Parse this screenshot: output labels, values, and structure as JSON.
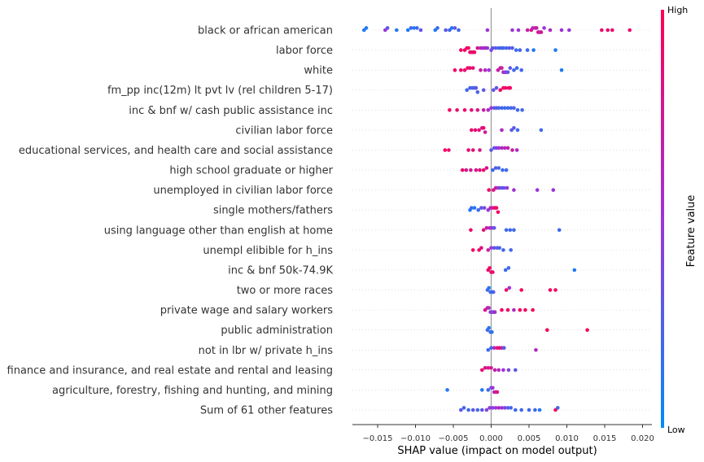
{
  "chart_data": {
    "type": "scatter",
    "subtype": "shap-beeswarm",
    "xlabel": "SHAP value (impact on model output)",
    "xlim": [
      -0.0185,
      0.0205
    ],
    "xticks": [
      {
        "value": -0.015,
        "label": "−0.015"
      },
      {
        "value": -0.01,
        "label": "−0.010"
      },
      {
        "value": -0.005,
        "label": "−0.005"
      },
      {
        "value": 0.0,
        "label": "0.000"
      },
      {
        "value": 0.005,
        "label": "0.005"
      },
      {
        "value": 0.01,
        "label": "0.010"
      },
      {
        "value": 0.015,
        "label": "0.015"
      },
      {
        "value": 0.02,
        "label": "0.020"
      }
    ],
    "colorbar": {
      "high_label": "High",
      "low_label": "Low",
      "title": "Feature value",
      "low_color": "#008bfb",
      "high_color": "#ff0052"
    },
    "features": [
      {
        "name": "black or african american",
        "points": [
          [
            -0.0168,
            0.1
          ],
          [
            -0.0165,
            0.1
          ],
          [
            -0.014,
            0.5
          ],
          [
            -0.0137,
            0.3
          ],
          [
            -0.0125,
            0.1
          ],
          [
            -0.011,
            0.1
          ],
          [
            -0.0106,
            0.2
          ],
          [
            -0.0102,
            0.1
          ],
          [
            -0.0098,
            0.2
          ],
          [
            -0.0093,
            0.3
          ],
          [
            -0.0074,
            0.1
          ],
          [
            -0.0071,
            0.2
          ],
          [
            -0.006,
            0.3
          ],
          [
            -0.0055,
            0.2
          ],
          [
            -0.0052,
            0.1
          ],
          [
            -0.0048,
            0.3
          ],
          [
            -0.0043,
            0.2
          ],
          [
            -0.0005,
            0.5
          ],
          [
            0.0028,
            0.5
          ],
          [
            0.0036,
            0.5
          ],
          [
            0.0048,
            0.7
          ],
          [
            0.0053,
            0.8
          ],
          [
            0.0055,
            0.6
          ],
          [
            0.0058,
            0.7
          ],
          [
            0.006,
            0.7
          ],
          [
            0.0062,
            0.8
          ],
          [
            0.0064,
            0.6
          ],
          [
            0.0066,
            0.8
          ],
          [
            0.007,
            0.5
          ],
          [
            0.0078,
            0.6
          ],
          [
            0.0093,
            0.5
          ],
          [
            0.0103,
            0.5
          ],
          [
            0.0146,
            0.9
          ],
          [
            0.0154,
            0.9
          ],
          [
            0.016,
            0.9
          ],
          [
            0.0183,
            0.9
          ]
        ]
      },
      {
        "name": "labor force",
        "points": [
          [
            -0.004,
            0.9
          ],
          [
            -0.0035,
            0.95
          ],
          [
            -0.0032,
            0.9
          ],
          [
            -0.003,
            0.95
          ],
          [
            -0.0028,
            0.9
          ],
          [
            -0.0026,
            0.85
          ],
          [
            -0.0024,
            0.95
          ],
          [
            -0.0022,
            0.9
          ],
          [
            -0.0018,
            0.8
          ],
          [
            -0.0014,
            0.6
          ],
          [
            -0.0011,
            0.5
          ],
          [
            -0.0008,
            0.7
          ],
          [
            -0.0005,
            0.4
          ],
          [
            0.0,
            0.4
          ],
          [
            0.0002,
            0.3
          ],
          [
            0.0006,
            0.3
          ],
          [
            0.001,
            0.2
          ],
          [
            0.0013,
            0.2
          ],
          [
            0.0016,
            0.25
          ],
          [
            0.002,
            0.2
          ],
          [
            0.0024,
            0.3
          ],
          [
            0.0028,
            0.25
          ],
          [
            0.0033,
            0.2
          ],
          [
            0.0038,
            0.2
          ],
          [
            0.0048,
            0.2
          ],
          [
            0.0056,
            0.1
          ],
          [
            0.0085,
            0.1
          ]
        ]
      },
      {
        "name": "white",
        "points": [
          [
            -0.0048,
            0.95
          ],
          [
            -0.004,
            0.9
          ],
          [
            -0.0035,
            0.9
          ],
          [
            -0.0031,
            0.95
          ],
          [
            -0.0028,
            0.9
          ],
          [
            -0.0024,
            0.85
          ],
          [
            -0.0014,
            0.7
          ],
          [
            -0.0008,
            0.6
          ],
          [
            -0.0003,
            0.5
          ],
          [
            0.0009,
            0.7
          ],
          [
            0.0012,
            0.75
          ],
          [
            0.0014,
            0.7
          ],
          [
            0.0016,
            0.6
          ],
          [
            0.0018,
            0.5
          ],
          [
            0.002,
            0.4
          ],
          [
            0.0022,
            0.3
          ],
          [
            0.0025,
            0.3
          ],
          [
            0.003,
            0.2
          ],
          [
            0.0034,
            0.2
          ],
          [
            0.004,
            0.2
          ],
          [
            0.0093,
            0.1
          ]
        ]
      },
      {
        "name": "fm_pp inc(12m) lt pvt lv (rel children 5-17)",
        "points": [
          [
            -0.0032,
            0.2
          ],
          [
            -0.0028,
            0.2
          ],
          [
            -0.0025,
            0.3
          ],
          [
            -0.0022,
            0.2
          ],
          [
            -0.002,
            0.3
          ],
          [
            -0.0018,
            0.25
          ],
          [
            -0.001,
            0.3
          ],
          [
            0.0003,
            0.3
          ],
          [
            0.0007,
            0.3
          ],
          [
            0.0012,
            0.95
          ],
          [
            0.0016,
            0.9
          ],
          [
            0.0019,
            0.95
          ],
          [
            0.0023,
            0.9
          ],
          [
            0.0025,
            0.95
          ]
        ]
      },
      {
        "name": "inc & bnf w/ cash public assistance inc",
        "points": [
          [
            -0.0055,
            0.95
          ],
          [
            -0.0045,
            0.9
          ],
          [
            -0.0035,
            0.9
          ],
          [
            -0.0026,
            0.85
          ],
          [
            -0.0018,
            0.8
          ],
          [
            -0.001,
            0.7
          ],
          [
            -0.0004,
            0.6
          ],
          [
            0.0,
            0.5
          ],
          [
            0.0004,
            0.3
          ],
          [
            0.0007,
            0.3
          ],
          [
            0.001,
            0.2
          ],
          [
            0.0014,
            0.2
          ],
          [
            0.0018,
            0.2
          ],
          [
            0.0022,
            0.2
          ],
          [
            0.0026,
            0.2
          ],
          [
            0.003,
            0.25
          ],
          [
            0.0035,
            0.2
          ],
          [
            0.0041,
            0.2
          ]
        ]
      },
      {
        "name": "civilian labor force",
        "points": [
          [
            -0.0026,
            0.9
          ],
          [
            -0.0021,
            0.9
          ],
          [
            -0.0016,
            0.85
          ],
          [
            -0.0012,
            0.8
          ],
          [
            -0.001,
            0.9
          ],
          [
            -0.0008,
            0.75
          ],
          [
            0.0014,
            0.6
          ],
          [
            0.0027,
            0.3
          ],
          [
            0.003,
            0.3
          ],
          [
            0.0035,
            0.2
          ],
          [
            0.0066,
            0.2
          ]
        ]
      },
      {
        "name": "educational services, and health care and social assistance",
        "points": [
          [
            -0.0061,
            0.95
          ],
          [
            -0.0056,
            0.9
          ],
          [
            -0.003,
            0.9
          ],
          [
            -0.0024,
            0.85
          ],
          [
            -0.0015,
            0.8
          ],
          [
            0.0,
            0.3
          ],
          [
            0.0004,
            0.3
          ],
          [
            0.0007,
            0.4
          ],
          [
            0.001,
            0.5
          ],
          [
            0.0014,
            0.6
          ],
          [
            0.0018,
            0.6
          ],
          [
            0.0022,
            0.7
          ],
          [
            0.0028,
            0.7
          ],
          [
            0.0034,
            0.6
          ]
        ]
      },
      {
        "name": "high school graduate or higher",
        "points": [
          [
            -0.0038,
            0.9
          ],
          [
            -0.0033,
            0.8
          ],
          [
            -0.0027,
            0.75
          ],
          [
            -0.002,
            0.8
          ],
          [
            -0.0015,
            0.85
          ],
          [
            -0.001,
            0.9
          ],
          [
            -0.0006,
            0.8
          ],
          [
            0.0002,
            0.2
          ],
          [
            0.0006,
            0.3
          ],
          [
            0.001,
            0.2
          ],
          [
            0.0015,
            0.2
          ],
          [
            0.002,
            0.2
          ]
        ]
      },
      {
        "name": "unemployed  in civilian labor force",
        "points": [
          [
            -0.0003,
            0.9
          ],
          [
            0.0003,
            0.8
          ],
          [
            0.0006,
            0.7
          ],
          [
            0.0009,
            0.6
          ],
          [
            0.0011,
            0.4
          ],
          [
            0.0014,
            0.3
          ],
          [
            0.0017,
            0.3
          ],
          [
            0.0021,
            0.5
          ],
          [
            0.003,
            0.5
          ],
          [
            0.0061,
            0.5
          ],
          [
            0.0082,
            0.5
          ]
        ]
      },
      {
        "name": "single mothers/fathers",
        "points": [
          [
            -0.0028,
            0.1
          ],
          [
            -0.0026,
            0.2
          ],
          [
            -0.0022,
            0.1
          ],
          [
            -0.0017,
            0.2
          ],
          [
            -0.0013,
            0.3
          ],
          [
            -0.0009,
            0.4
          ],
          [
            -0.0004,
            0.5
          ],
          [
            -0.0001,
            0.6
          ],
          [
            0.0002,
            0.8
          ],
          [
            0.0005,
            0.9
          ],
          [
            0.0007,
            0.9
          ],
          [
            0.0009,
            0.95
          ]
        ]
      },
      {
        "name": "using language other than english at home",
        "points": [
          [
            -0.0027,
            0.9
          ],
          [
            -0.001,
            0.85
          ],
          [
            -0.0006,
            0.7
          ],
          [
            -0.0002,
            0.6
          ],
          [
            0.0001,
            0.5
          ],
          [
            0.0004,
            0.3
          ],
          [
            0.002,
            0.2
          ],
          [
            0.0025,
            0.2
          ],
          [
            0.003,
            0.2
          ],
          [
            0.009,
            0.2
          ]
        ]
      },
      {
        "name": "unempl elibible for h_ins",
        "points": [
          [
            -0.0024,
            0.95
          ],
          [
            -0.0016,
            0.9
          ],
          [
            -0.0013,
            0.85
          ],
          [
            -0.0004,
            0.7
          ],
          [
            0.0,
            0.5
          ],
          [
            0.0004,
            0.3
          ],
          [
            0.0008,
            0.3
          ],
          [
            0.0011,
            0.2
          ],
          [
            0.0016,
            0.2
          ],
          [
            0.0026,
            0.2
          ]
        ]
      },
      {
        "name": "inc & bnf 50k-74.9K",
        "points": [
          [
            -0.0004,
            0.9
          ],
          [
            -0.0002,
            0.95
          ],
          [
            0.0,
            0.85
          ],
          [
            0.0002,
            0.9
          ],
          [
            0.0019,
            0.2
          ],
          [
            0.0023,
            0.2
          ],
          [
            0.011,
            0.1
          ]
        ]
      },
      {
        "name": "two or more races",
        "points": [
          [
            -0.0005,
            0.2
          ],
          [
            -0.0003,
            0.1
          ],
          [
            -0.0001,
            0.2
          ],
          [
            0.0001,
            0.15
          ],
          [
            0.0003,
            0.25
          ],
          [
            0.002,
            0.9
          ],
          [
            0.0024,
            0.5
          ],
          [
            0.004,
            0.95
          ],
          [
            0.0078,
            0.95
          ],
          [
            0.0085,
            0.95
          ]
        ]
      },
      {
        "name": "private wage and salary workers",
        "points": [
          [
            -0.0008,
            0.8
          ],
          [
            -0.0005,
            0.7
          ],
          [
            -0.0003,
            0.6
          ],
          [
            -0.0001,
            0.5
          ],
          [
            0.0001,
            0.4
          ],
          [
            0.0003,
            0.3
          ],
          [
            0.0005,
            0.6
          ],
          [
            0.0014,
            0.95
          ],
          [
            0.0022,
            0.9
          ],
          [
            0.003,
            0.6
          ],
          [
            0.0038,
            0.95
          ],
          [
            0.0045,
            0.95
          ],
          [
            0.0055,
            0.95
          ]
        ]
      },
      {
        "name": "public administration",
        "points": [
          [
            -0.0005,
            0.2
          ],
          [
            -0.0003,
            0.1
          ],
          [
            -0.0001,
            0.2
          ],
          [
            0.0001,
            0.15
          ],
          [
            0.0074,
            0.95
          ],
          [
            0.0127,
            0.95
          ]
        ]
      },
      {
        "name": "not in lbr w/ private h_ins",
        "points": [
          [
            -0.0004,
            0.2
          ],
          [
            0.0,
            0.2
          ],
          [
            0.0004,
            0.6
          ],
          [
            0.0008,
            0.8
          ],
          [
            0.0011,
            0.9
          ],
          [
            0.0014,
            0.7
          ],
          [
            0.0017,
            0.3
          ],
          [
            0.0059,
            0.6
          ]
        ]
      },
      {
        "name": "finance and insurance, and real estate and rental and leasing",
        "points": [
          [
            -0.0012,
            0.9
          ],
          [
            -0.0008,
            0.85
          ],
          [
            -0.0004,
            0.8
          ],
          [
            0.0,
            0.75
          ],
          [
            0.0005,
            0.7
          ],
          [
            0.001,
            0.6
          ],
          [
            0.0016,
            0.5
          ],
          [
            0.0023,
            0.4
          ],
          [
            0.0032,
            0.3
          ]
        ]
      },
      {
        "name": "agriculture, forestry, fishing and hunting, and mining",
        "points": [
          [
            -0.0058,
            0.1
          ],
          [
            -0.0012,
            0.1
          ],
          [
            -0.0004,
            0.2
          ],
          [
            0.0,
            0.3
          ],
          [
            0.0002,
            0.5
          ],
          [
            0.0004,
            0.6
          ],
          [
            0.0006,
            0.7
          ],
          [
            0.0008,
            0.8
          ]
        ]
      },
      {
        "name": "Sum of 61 other features",
        "points": [
          [
            -0.004,
            0.3
          ],
          [
            -0.0036,
            0.2
          ],
          [
            -0.003,
            0.2
          ],
          [
            -0.0024,
            0.3
          ],
          [
            -0.0018,
            0.2
          ],
          [
            -0.0012,
            0.3
          ],
          [
            -0.0006,
            0.4
          ],
          [
            -0.0002,
            0.5
          ],
          [
            0.0002,
            0.4
          ],
          [
            0.0006,
            0.5
          ],
          [
            0.001,
            0.6
          ],
          [
            0.0014,
            0.5
          ],
          [
            0.0018,
            0.4
          ],
          [
            0.0022,
            0.3
          ],
          [
            0.0026,
            0.2
          ],
          [
            0.0032,
            0.2
          ],
          [
            0.004,
            0.2
          ],
          [
            0.005,
            0.2
          ],
          [
            0.0058,
            0.2
          ],
          [
            0.0064,
            0.1
          ],
          [
            0.0085,
            0.95
          ],
          [
            0.0088,
            0.2
          ]
        ]
      }
    ]
  }
}
